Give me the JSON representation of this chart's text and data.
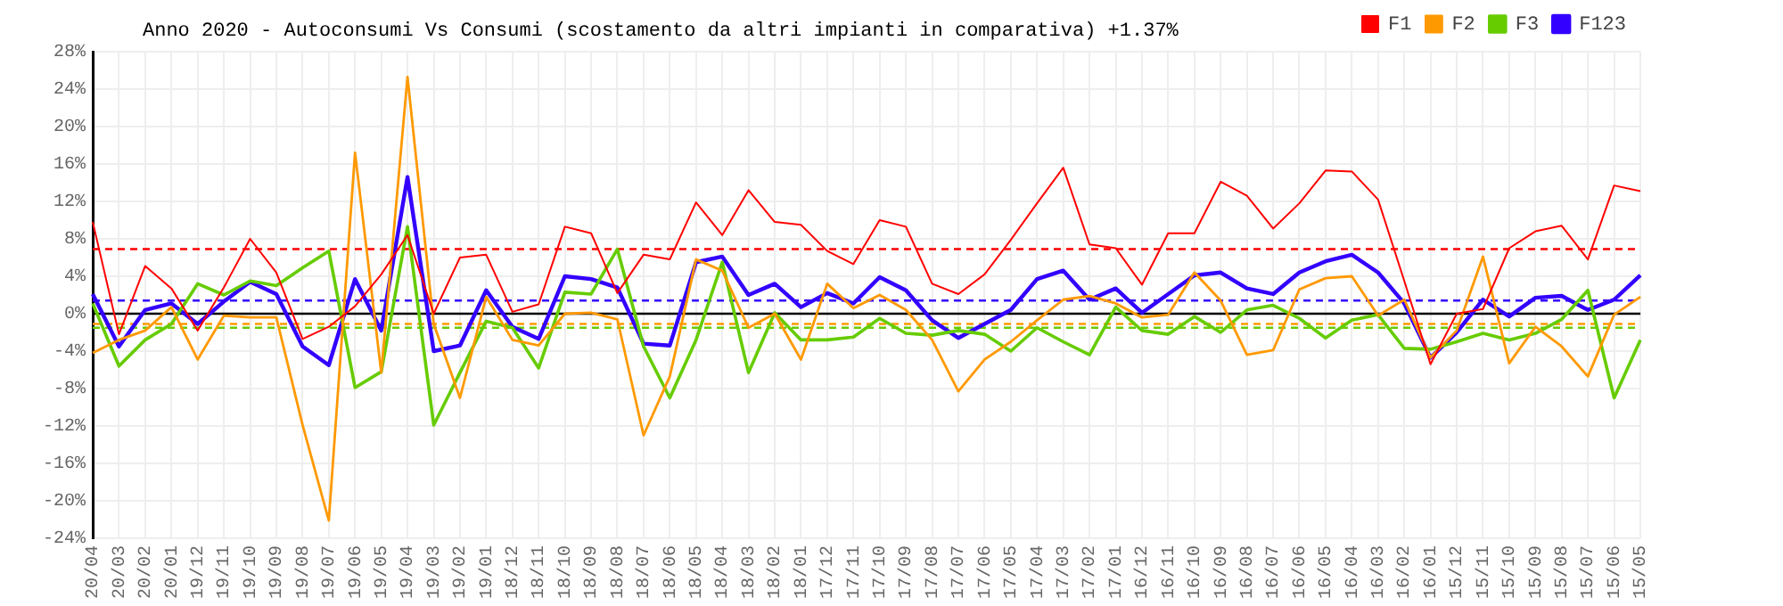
{
  "chart_data": {
    "type": "line",
    "title": "Anno 2020 - Autoconsumi Vs Consumi (scostamento da altri impianti in comparativa) +1.37%",
    "categories": [
      "20/04",
      "20/03",
      "20/02",
      "20/01",
      "19/12",
      "19/11",
      "19/10",
      "19/09",
      "19/08",
      "19/07",
      "19/06",
      "19/05",
      "19/04",
      "19/03",
      "19/02",
      "19/01",
      "18/12",
      "18/11",
      "18/10",
      "18/09",
      "18/08",
      "18/07",
      "18/06",
      "18/05",
      "18/04",
      "18/03",
      "18/02",
      "18/01",
      "17/12",
      "17/11",
      "17/10",
      "17/09",
      "17/08",
      "17/07",
      "17/06",
      "17/05",
      "17/04",
      "17/03",
      "17/02",
      "17/01",
      "16/12",
      "16/11",
      "16/10",
      "16/09",
      "16/08",
      "16/07",
      "16/06",
      "16/05",
      "16/04",
      "16/03",
      "16/02",
      "16/01",
      "15/12",
      "15/11",
      "15/10",
      "15/09",
      "15/08",
      "15/07",
      "15/06",
      "15/05"
    ],
    "series": [
      {
        "name": "F1",
        "color": "#ff0000",
        "values": [
          9.8,
          -2.2,
          5.1,
          2.7,
          -1.8,
          2.8,
          8.0,
          4.4,
          -2.7,
          -1.4,
          0.8,
          4.2,
          8.4,
          0,
          6.0,
          6.3,
          0.2,
          1.0,
          9.3,
          8.6,
          2.2,
          6.3,
          5.8,
          11.9,
          8.4,
          13.2,
          9.8,
          9.5,
          6.7,
          5.3,
          10.0,
          9.3,
          3.2,
          2.1,
          4.2,
          7.9,
          11.8,
          15.6,
          7.4,
          7.0,
          3.1,
          8.6,
          8.6,
          14.1,
          12.6,
          9.1,
          11.8,
          15.3,
          15.2,
          12.2,
          3.5,
          -5.4,
          0,
          0.5,
          7.0,
          8.8,
          9.4,
          5.8,
          13.7,
          13.1
        ]
      },
      {
        "name": "F2",
        "color": "#ff9900",
        "values": [
          -4.2,
          -2.8,
          -1.8,
          0.7,
          -4.9,
          -0.2,
          -0.4,
          -0.4,
          -11.9,
          -22.1,
          17.2,
          -6.3,
          25.3,
          -1.1,
          -9.0,
          1.8,
          -2.8,
          -3.4,
          0,
          0.1,
          -0.6,
          -13.0,
          -6.7,
          5.8,
          4.6,
          -1.5,
          0,
          -4.9,
          3.2,
          0.6,
          2.0,
          0.4,
          -2.8,
          -8.3,
          -4.9,
          -3.0,
          -0.7,
          1.5,
          1.9,
          1.1,
          -0.4,
          -0.1,
          4.4,
          1.4,
          -4.4,
          -3.9,
          2.6,
          3.8,
          4.0,
          -0.2,
          1.5,
          -4.7,
          -1.8,
          6.1,
          -5.3,
          -1.4,
          -3.5,
          -6.7,
          -0.1,
          1.8
        ]
      },
      {
        "name": "F3",
        "color": "#66cc00",
        "values": [
          1.1,
          -5.6,
          -2.8,
          -1.1,
          3.2,
          2.0,
          3.5,
          3.0,
          4.9,
          6.7,
          -7.9,
          -6.2,
          9.3,
          -11.9,
          -6.3,
          -0.8,
          -1.5,
          -5.8,
          2.3,
          2.1,
          6.9,
          -3.5,
          -9.0,
          -2.8,
          5.5,
          -6.3,
          0.1,
          -2.8,
          -2.8,
          -2.5,
          -0.5,
          -2.1,
          -2.3,
          -1.8,
          -2.2,
          -4.0,
          -1.5,
          -3.0,
          -4.4,
          0.7,
          -1.8,
          -2.2,
          -0.3,
          -2.0,
          0.4,
          0.9,
          -0.5,
          -2.6,
          -0.7,
          -0.1,
          -3.7,
          -3.8,
          -3.0,
          -2.1,
          -2.8,
          -2.1,
          -0.6,
          2.5,
          -9.0,
          -2.8
        ]
      },
      {
        "name": "F123",
        "color": "#3300ff",
        "values": [
          2.1,
          -3.5,
          0.4,
          1.1,
          -1.1,
          1.3,
          3.4,
          2.1,
          -3.5,
          -5.5,
          3.7,
          -1.8,
          14.6,
          -4.0,
          -3.4,
          2.5,
          -1.4,
          -2.7,
          4.0,
          3.7,
          2.8,
          -3.2,
          -3.4,
          5.5,
          6.1,
          2.0,
          3.2,
          0.7,
          2.2,
          1.1,
          3.9,
          2.5,
          -0.7,
          -2.6,
          -1.1,
          0.4,
          3.7,
          4.6,
          1.5,
          2.7,
          0.1,
          2.1,
          4.1,
          4.4,
          2.7,
          2.1,
          4.4,
          5.6,
          6.3,
          4.4,
          1.1,
          -4.7,
          -2.0,
          1.5,
          -0.3,
          1.7,
          1.9,
          0.4,
          1.5,
          4.1
        ]
      }
    ],
    "ylim": [
      -24,
      28
    ],
    "yticks": [
      {
        "value": -24,
        "label": "-24%"
      },
      {
        "value": -20,
        "label": "-20%"
      },
      {
        "value": -16,
        "label": "-16%"
      },
      {
        "value": -12,
        "label": "-12%"
      },
      {
        "value": -8,
        "label": "-8%"
      },
      {
        "value": -4,
        "label": "-4%"
      },
      {
        "value": 0,
        "label": "0%"
      },
      {
        "value": 4,
        "label": "4%"
      },
      {
        "value": 8,
        "label": "8%"
      },
      {
        "value": 12,
        "label": "12%"
      },
      {
        "value": 16,
        "label": "16%"
      },
      {
        "value": 20,
        "label": "20%"
      },
      {
        "value": 24,
        "label": "24%"
      },
      {
        "value": 28,
        "label": "28%"
      }
    ],
    "ref_lines": [
      {
        "axis": "y",
        "value": 0,
        "color": "#000000",
        "line_style": "solid"
      },
      {
        "axis": "y",
        "value": 6.9,
        "color": "#ff0000",
        "line_style": "dashed"
      },
      {
        "axis": "y",
        "value": -1.1,
        "color": "#ff9900",
        "line_style": "dashed"
      },
      {
        "axis": "y",
        "value": -1.5,
        "color": "#66cc00",
        "line_style": "dashed"
      },
      {
        "axis": "y",
        "value": 1.4,
        "color": "#3300ff",
        "line_style": "dashed"
      }
    ],
    "grid": true,
    "legend": "top right",
    "marker": "none",
    "line_style": "solid"
  }
}
